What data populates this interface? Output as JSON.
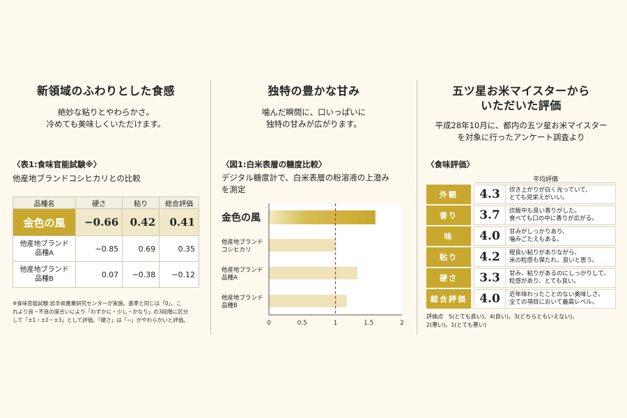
{
  "col1": {
    "title": "新領域のふわりとした食感",
    "lead1": "絶妙な粘りとやわらかさ。",
    "lead2": "冷めても美味しくいただけます。",
    "section": "〈表1:食味官能試験※〉",
    "subtitle": "他産地ブランドコシヒカリとの比較",
    "headers": [
      "品種名",
      "硬さ",
      "粘り",
      "総合評価"
    ],
    "highlight": {
      "name": "金色の風",
      "values": [
        "−0.66",
        "0.42",
        "0.41"
      ]
    },
    "rows": [
      {
        "name1": "他産地ブランド",
        "name2": "品種A",
        "values": [
          "−0.85",
          "0.69",
          "0.35"
        ]
      },
      {
        "name1": "他産地ブランド",
        "name2": "品種B",
        "values": [
          "0.07",
          "−0.38",
          "−0.12"
        ]
      }
    ],
    "note1": "※食味官能試験:岩手県農業研究センターが実施。基準と同じは「0」、こ",
    "note2": "れより良・不良の度合いにより「わずかに・少し・かなり」の3段階に区分",
    "note3": "して「±1・±2・±3」として評価。「硬さ」は「−」がやわらかいと評価。"
  },
  "col2": {
    "title": "独特の豊かな甘み",
    "lead1": "噛んだ瞬間に、口いっぱいに",
    "lead2": "独特の甘みが広がります。",
    "section": "〈図1:白米表層の糖度比較〉",
    "sub1": "デジタル糖度計で、白米表層の粉溶液の上澄み",
    "sub2": "を測定"
  },
  "chart_data": {
    "type": "bar",
    "orientation": "horizontal",
    "categories": [
      "金色の風",
      "他産地ブランド コシヒカリ",
      "他産地ブランド 品種A",
      "他産地ブランド 品種B"
    ],
    "category_lines": [
      [
        "金色の風"
      ],
      [
        "他産地ブランド",
        "コシヒカリ"
      ],
      [
        "他産地ブランド",
        "品種A"
      ],
      [
        "他産地ブランド",
        "品種B"
      ]
    ],
    "values": [
      1.6,
      1.0,
      1.33,
      1.17
    ],
    "xlim": [
      0,
      2
    ],
    "xticks": [
      "0",
      "0.5",
      "1",
      "1.5",
      "2"
    ],
    "reference_line": 1,
    "colors": {
      "highlight": "#c8a82e",
      "other": "#efe2b8",
      "ref": "#b03a3a"
    }
  },
  "col3": {
    "title1": "五ツ星お米マイスターから",
    "title2": "いただいた評価",
    "lead1": "平成28年10月に、都内の五ツ星お米マイスター",
    "lead2": "を対象に行ったアンケート調査より",
    "section": "〈食味評価〉",
    "header": "平均評価",
    "rows": [
      {
        "label": "外観",
        "score": "4.3",
        "c1": "炊き上がりが白く光っていて、",
        "c2": "とても見栄えがいい。"
      },
      {
        "label": "香り",
        "score": "3.7",
        "c1": "炊飯中も良い香りがした。",
        "c2": "食べても口の中に香りが広がる。"
      },
      {
        "label": "味",
        "score": "4.0",
        "c1": "甘みがしっかりあり、",
        "c2": "噛みごたえもある。"
      },
      {
        "label": "粘り",
        "score": "4.2",
        "c1": "程良い粘りがありながら、",
        "c2": "米の粒感も保たれ、良いと思う。"
      },
      {
        "label": "硬さ",
        "score": "3.3",
        "c1": "甘み、粘りがあるのにしっかりして、",
        "c2": "粒感があり、とても良い。"
      },
      {
        "label": "総合評価",
        "score": "4.0",
        "c1": "近年味わったことのない美味しさ。",
        "c2": "全ての項目において最高レベル。"
      }
    ],
    "foot1": "評価点　5(とても良い)、4(良い)、3(どちらともいえない)、",
    "foot2": "2(悪い)、1(とても悪い)"
  }
}
